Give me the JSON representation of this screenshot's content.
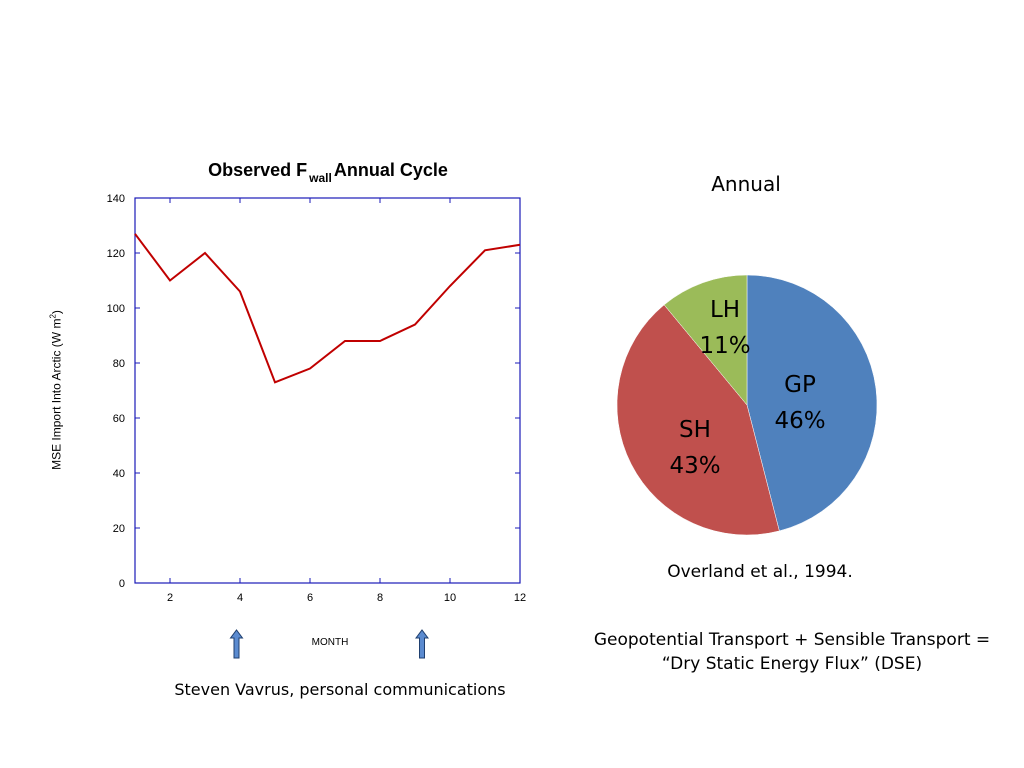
{
  "line_chart": {
    "title_main": "Observed F",
    "title_sub": "wall",
    "title_rest": "Annual Cycle",
    "ylabel_main": "MSE Import Into Arctic (W m",
    "ylabel_sup": "2",
    "ylabel_end": ")",
    "xlabel": "MONTH",
    "source": "Steven Vavrus, personal communications"
  },
  "pie_chart": {
    "title": "Annual",
    "source": "Overland et al., 1994."
  },
  "note": {
    "line1": "Geopotential Transport + Sensible Transport =",
    "line2": "“Dry Static Energy Flux” (DSE)"
  },
  "colors": {
    "axis": "#1a1ab8",
    "line": "#c00000",
    "arrow": "#5b8bd0",
    "gp": "#4f81bd",
    "sh": "#c0504d",
    "lh": "#9bbb59"
  },
  "chart_data": [
    {
      "type": "line",
      "title": "Observed Fwall Annual Cycle",
      "xlabel": "MONTH",
      "ylabel": "MSE Import Into Arctic (W m-2)",
      "xlim": [
        1,
        12
      ],
      "ylim": [
        0,
        140
      ],
      "xticks": [
        2,
        4,
        6,
        8,
        10,
        12
      ],
      "yticks": [
        0,
        20,
        40,
        60,
        80,
        100,
        120,
        140
      ],
      "series": [
        {
          "x": [
            1,
            2,
            3,
            4,
            5,
            6,
            7,
            8,
            9,
            10,
            11,
            12
          ],
          "values": [
            127,
            110,
            120,
            106,
            73,
            78,
            88,
            88,
            94,
            108,
            121,
            123
          ]
        }
      ],
      "arrows_at_month": [
        3.9,
        9.2
      ]
    },
    {
      "type": "pie",
      "title": "Annual",
      "slices": [
        {
          "label": "GP",
          "value": 46,
          "text": "46%"
        },
        {
          "label": "SH",
          "value": 43,
          "text": "43%"
        },
        {
          "label": "LH",
          "value": 11,
          "text": "11%"
        }
      ]
    }
  ]
}
